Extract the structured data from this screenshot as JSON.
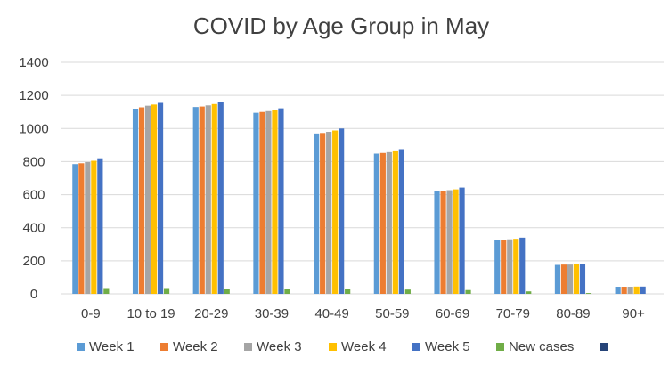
{
  "colors": {
    "week1": "#5b9bd5",
    "week2": "#ed7d31",
    "week3": "#a5a5a5",
    "week4": "#ffc000",
    "week5": "#4472c4",
    "new_cases": "#70ad47",
    "extra": "#264478",
    "grid": "#d9d9d9",
    "text": "#404040"
  },
  "chart_data": {
    "type": "bar",
    "title": "COVID by Age Group in May",
    "xlabel": "",
    "ylabel": "",
    "ylim": [
      0,
      1400
    ],
    "yticks": [
      0,
      200,
      400,
      600,
      800,
      1000,
      1200,
      1400
    ],
    "grid": true,
    "legend_position": "bottom",
    "categories": [
      "0-9",
      "10 to 19",
      "20-29",
      "30-39",
      "40-49",
      "50-59",
      "60-69",
      "70-79",
      "80-89",
      "90+"
    ],
    "series": [
      {
        "name": "Week 1",
        "values": [
          785,
          1120,
          1130,
          1095,
          970,
          848,
          620,
          325,
          175,
          43
        ]
      },
      {
        "name": "Week 2",
        "values": [
          790,
          1128,
          1133,
          1100,
          973,
          852,
          623,
          327,
          177,
          43
        ]
      },
      {
        "name": "Week 3",
        "values": [
          797,
          1138,
          1140,
          1105,
          980,
          857,
          627,
          330,
          177,
          43
        ]
      },
      {
        "name": "Week 4",
        "values": [
          805,
          1145,
          1148,
          1112,
          988,
          862,
          632,
          333,
          178,
          44
        ]
      },
      {
        "name": "Week 5",
        "values": [
          820,
          1155,
          1160,
          1122,
          1000,
          875,
          643,
          340,
          180,
          44
        ]
      },
      {
        "name": "New cases",
        "values": [
          35,
          35,
          28,
          27,
          28,
          26,
          23,
          15,
          5,
          0
        ]
      },
      {
        "name": "",
        "values": [
          0,
          0,
          0,
          0,
          0,
          0,
          0,
          0,
          0,
          0
        ]
      }
    ]
  }
}
